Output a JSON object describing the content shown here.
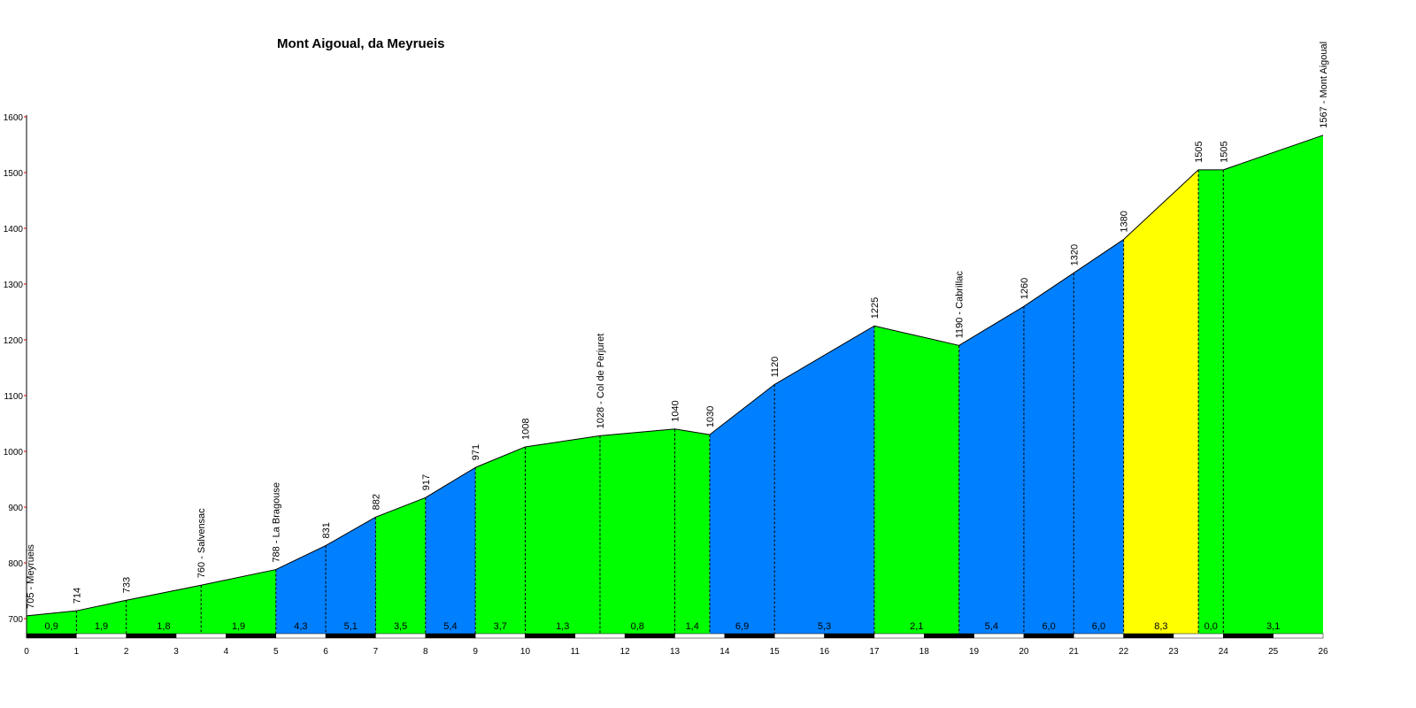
{
  "chart_data": {
    "type": "area",
    "title": "Mont Aigoual, da Meyrueis",
    "xlabel": "",
    "ylabel": "",
    "xlim": [
      0,
      26
    ],
    "ylim": [
      700,
      1600
    ],
    "x_ticks": [
      0,
      1,
      2,
      3,
      4,
      5,
      6,
      7,
      8,
      9,
      10,
      11,
      12,
      13,
      14,
      15,
      16,
      17,
      18,
      19,
      20,
      21,
      22,
      23,
      24,
      25,
      26
    ],
    "y_ticks": [
      700,
      800,
      900,
      1000,
      1100,
      1200,
      1300,
      1400,
      1500,
      1600
    ],
    "points": [
      {
        "km": 0,
        "ele": 705,
        "label": "705 - Meyrueis"
      },
      {
        "km": 1,
        "ele": 714,
        "label": "714"
      },
      {
        "km": 2,
        "ele": 733,
        "label": "733"
      },
      {
        "km": 3.5,
        "ele": 760,
        "label": "760 - Salvensac"
      },
      {
        "km": 5,
        "ele": 788,
        "label": "788 - La Bragouse"
      },
      {
        "km": 6,
        "ele": 831,
        "label": "831"
      },
      {
        "km": 7,
        "ele": 882,
        "label": "882"
      },
      {
        "km": 8,
        "ele": 917,
        "label": "917"
      },
      {
        "km": 9,
        "ele": 971,
        "label": "971"
      },
      {
        "km": 10,
        "ele": 1008,
        "label": "1008"
      },
      {
        "km": 11.5,
        "ele": 1028,
        "label": "1028 - Col de Perjuret"
      },
      {
        "km": 13,
        "ele": 1040,
        "label": "1040"
      },
      {
        "km": 13.7,
        "ele": 1030,
        "label": "1030"
      },
      {
        "km": 15,
        "ele": 1120,
        "label": "1120"
      },
      {
        "km": 17,
        "ele": 1225,
        "label": "1225"
      },
      {
        "km": 18.7,
        "ele": 1190,
        "label": "1190 - Cabrillac"
      },
      {
        "km": 20,
        "ele": 1260,
        "label": "1260"
      },
      {
        "km": 21,
        "ele": 1320,
        "label": "1320"
      },
      {
        "km": 22,
        "ele": 1380,
        "label": "1380"
      },
      {
        "km": 23.5,
        "ele": 1505,
        "label": "1505"
      },
      {
        "km": 24,
        "ele": 1505,
        "label": "1505"
      },
      {
        "km": 26,
        "ele": 1567,
        "label": "1567 - Mont Aigoual"
      }
    ],
    "segments": [
      {
        "gradient": "0,9",
        "color": "#00ff00"
      },
      {
        "gradient": "1,9",
        "color": "#00ff00"
      },
      {
        "gradient": "1,8",
        "color": "#00ff00"
      },
      {
        "gradient": "1,9",
        "color": "#00ff00"
      },
      {
        "gradient": "4,3",
        "color": "#0080ff"
      },
      {
        "gradient": "5,1",
        "color": "#0080ff"
      },
      {
        "gradient": "3,5",
        "color": "#00ff00"
      },
      {
        "gradient": "5,4",
        "color": "#0080ff"
      },
      {
        "gradient": "3,7",
        "color": "#00ff00"
      },
      {
        "gradient": "1,3",
        "color": "#00ff00"
      },
      {
        "gradient": "0,8",
        "color": "#00ff00"
      },
      {
        "gradient": "1,4",
        "color": "#00ff00"
      },
      {
        "gradient": "6,9",
        "color": "#0080ff"
      },
      {
        "gradient": "5,3",
        "color": "#0080ff"
      },
      {
        "gradient": "2,1",
        "color": "#00ff00"
      },
      {
        "gradient": "5,4",
        "color": "#0080ff"
      },
      {
        "gradient": "6,0",
        "color": "#0080ff"
      },
      {
        "gradient": "6,0",
        "color": "#0080ff"
      },
      {
        "gradient": "8,3",
        "color": "#ffff00"
      },
      {
        "gradient": "0,0",
        "color": "#00ff00"
      },
      {
        "gradient": "3,1",
        "color": "#00ff00"
      }
    ]
  }
}
